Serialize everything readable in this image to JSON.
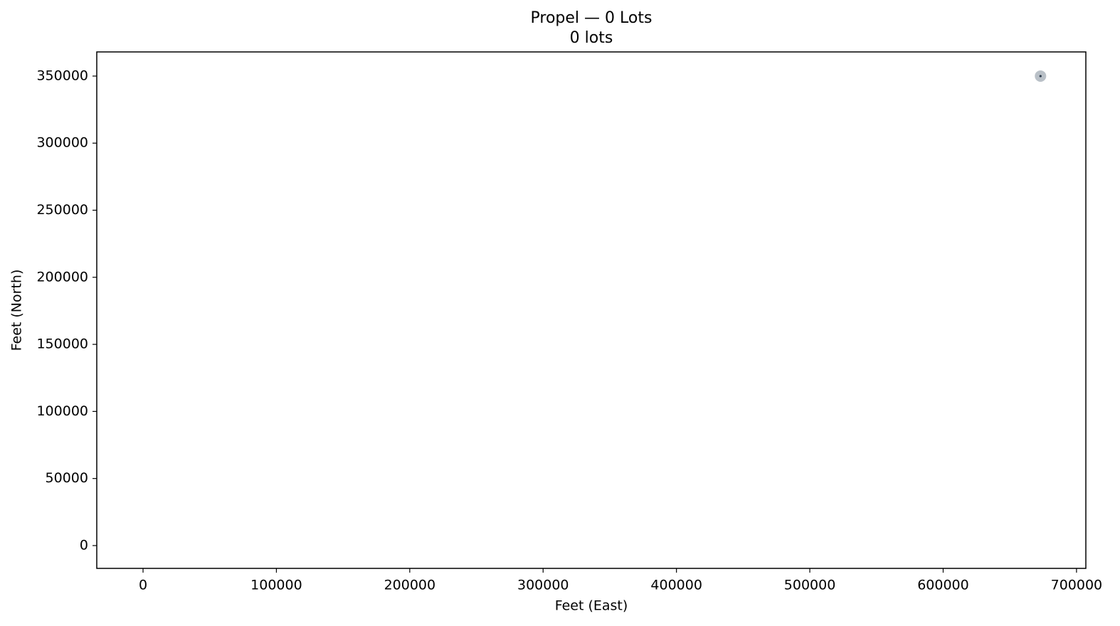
{
  "chart_data": {
    "type": "scatter",
    "title": "Propel — 0 Lots",
    "subtitle": "0 lots",
    "x_label": "Feet (East)",
    "y_label": "Feet (North)",
    "x": [
      673000
    ],
    "y": [
      350000
    ],
    "color": "#b9c0c7",
    "center_color": "#2b3a4a",
    "xlim": [
      -34700,
      707000
    ],
    "ylim": [
      -17000,
      368000
    ],
    "xticks": [
      0,
      100000,
      200000,
      300000,
      400000,
      500000,
      600000,
      700000
    ],
    "yticks": [
      0,
      50000,
      100000,
      150000,
      200000,
      250000,
      300000,
      350000
    ],
    "grid": false
  }
}
